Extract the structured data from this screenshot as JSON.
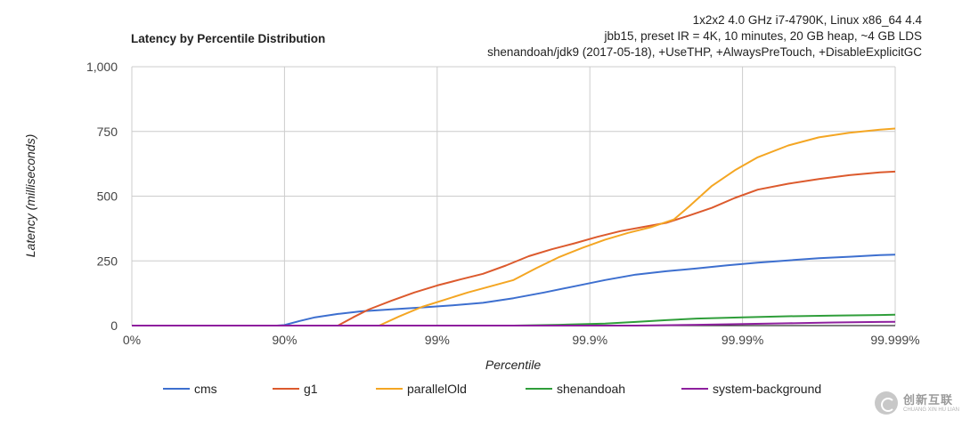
{
  "chart_data": {
    "type": "line",
    "title": "Latency by Percentile Distribution",
    "subtitle_lines": [
      "1x2x2 4.0 GHz i7-4790K, Linux x86_64 4.4",
      "jbb15, preset IR = 4K, 10 minutes, 20 GB heap, ~4 GB LDS",
      "shenandoah/jdk9 (2017-05-18), +UseTHP, +AlwaysPreTouch, +DisableExplicitGC"
    ],
    "xlabel": "Percentile",
    "ylabel": "Latency (milliseconds)",
    "x_scale": "log-percentile (nines)",
    "x_ticks": [
      "0%",
      "90%",
      "99%",
      "99.9%",
      "99.99%",
      "99.999%"
    ],
    "xlim": [
      0,
      5
    ],
    "y_ticks": [
      "0",
      "250",
      "500",
      "750",
      "1,000"
    ],
    "ylim": [
      0,
      1000
    ],
    "grid": true,
    "legend_position": "bottom",
    "x_unit_note": "x values measured in nines: 1 = 90%, 2 = 99%, 3 = 99.9%, 4 = 99.99%, 5 = 99.999%",
    "series": [
      {
        "name": "cms",
        "color": "#3d6fcf",
        "points": [
          [
            0,
            0
          ],
          [
            0.95,
            0
          ],
          [
            1.0,
            2
          ],
          [
            1.1,
            18
          ],
          [
            1.2,
            32
          ],
          [
            1.35,
            45
          ],
          [
            1.5,
            55
          ],
          [
            1.7,
            63
          ],
          [
            1.9,
            70
          ],
          [
            2.1,
            78
          ],
          [
            2.3,
            88
          ],
          [
            2.5,
            106
          ],
          [
            2.7,
            128
          ],
          [
            2.9,
            152
          ],
          [
            3.1,
            176
          ],
          [
            3.3,
            197
          ],
          [
            3.5,
            210
          ],
          [
            3.7,
            221
          ],
          [
            3.9,
            233
          ],
          [
            4.1,
            243
          ],
          [
            4.3,
            252
          ],
          [
            4.5,
            260
          ],
          [
            4.7,
            266
          ],
          [
            4.9,
            272
          ],
          [
            5.1,
            276
          ],
          [
            5.3,
            279
          ],
          [
            5.5,
            281
          ]
        ]
      },
      {
        "name": "g1",
        "color": "#dc5a2d",
        "points": [
          [
            0,
            0
          ],
          [
            1.35,
            0
          ],
          [
            1.45,
            32
          ],
          [
            1.55,
            62
          ],
          [
            1.7,
            96
          ],
          [
            1.85,
            128
          ],
          [
            2.0,
            155
          ],
          [
            2.15,
            178
          ],
          [
            2.3,
            200
          ],
          [
            2.45,
            232
          ],
          [
            2.6,
            268
          ],
          [
            2.75,
            295
          ],
          [
            2.9,
            318
          ],
          [
            3.05,
            343
          ],
          [
            3.2,
            365
          ],
          [
            3.35,
            381
          ],
          [
            3.5,
            397
          ],
          [
            3.65,
            425
          ],
          [
            3.8,
            455
          ],
          [
            3.95,
            493
          ],
          [
            4.1,
            525
          ],
          [
            4.3,
            548
          ],
          [
            4.5,
            566
          ],
          [
            4.7,
            581
          ],
          [
            4.9,
            592
          ],
          [
            5.1,
            598
          ],
          [
            5.3,
            601
          ],
          [
            5.5,
            602
          ]
        ]
      },
      {
        "name": "parallelOld",
        "color": "#f4a623",
        "points": [
          [
            0,
            0
          ],
          [
            1.62,
            0
          ],
          [
            1.75,
            35
          ],
          [
            1.9,
            72
          ],
          [
            2.05,
            100
          ],
          [
            2.2,
            128
          ],
          [
            2.35,
            152
          ],
          [
            2.5,
            176
          ],
          [
            2.65,
            222
          ],
          [
            2.8,
            265
          ],
          [
            2.95,
            300
          ],
          [
            3.1,
            332
          ],
          [
            3.25,
            358
          ],
          [
            3.4,
            380
          ],
          [
            3.55,
            410
          ],
          [
            3.65,
            460
          ],
          [
            3.8,
            540
          ],
          [
            3.95,
            600
          ],
          [
            4.1,
            650
          ],
          [
            4.3,
            696
          ],
          [
            4.5,
            727
          ],
          [
            4.7,
            745
          ],
          [
            4.9,
            757
          ],
          [
            5.1,
            765
          ],
          [
            5.3,
            771
          ],
          [
            5.5,
            776
          ]
        ]
      },
      {
        "name": "shenandoah",
        "color": "#2f9e3a",
        "points": [
          [
            0,
            0
          ],
          [
            2.5,
            0
          ],
          [
            2.8,
            3
          ],
          [
            3.1,
            8
          ],
          [
            3.3,
            14
          ],
          [
            3.5,
            21
          ],
          [
            3.7,
            27
          ],
          [
            4.0,
            32
          ],
          [
            4.3,
            36
          ],
          [
            4.6,
            39
          ],
          [
            4.9,
            41
          ],
          [
            5.2,
            44
          ],
          [
            5.5,
            47
          ]
        ]
      },
      {
        "name": "system-background",
        "color": "#8e1f9e",
        "points": [
          [
            0,
            0
          ],
          [
            3.3,
            0
          ],
          [
            3.7,
            3
          ],
          [
            4.0,
            6
          ],
          [
            4.3,
            9
          ],
          [
            4.6,
            12
          ],
          [
            4.9,
            14
          ],
          [
            5.2,
            16
          ],
          [
            5.5,
            18
          ]
        ]
      }
    ]
  },
  "watermark": {
    "main": "创新互联",
    "sub": "CHUANG XIN HU LIAN"
  }
}
